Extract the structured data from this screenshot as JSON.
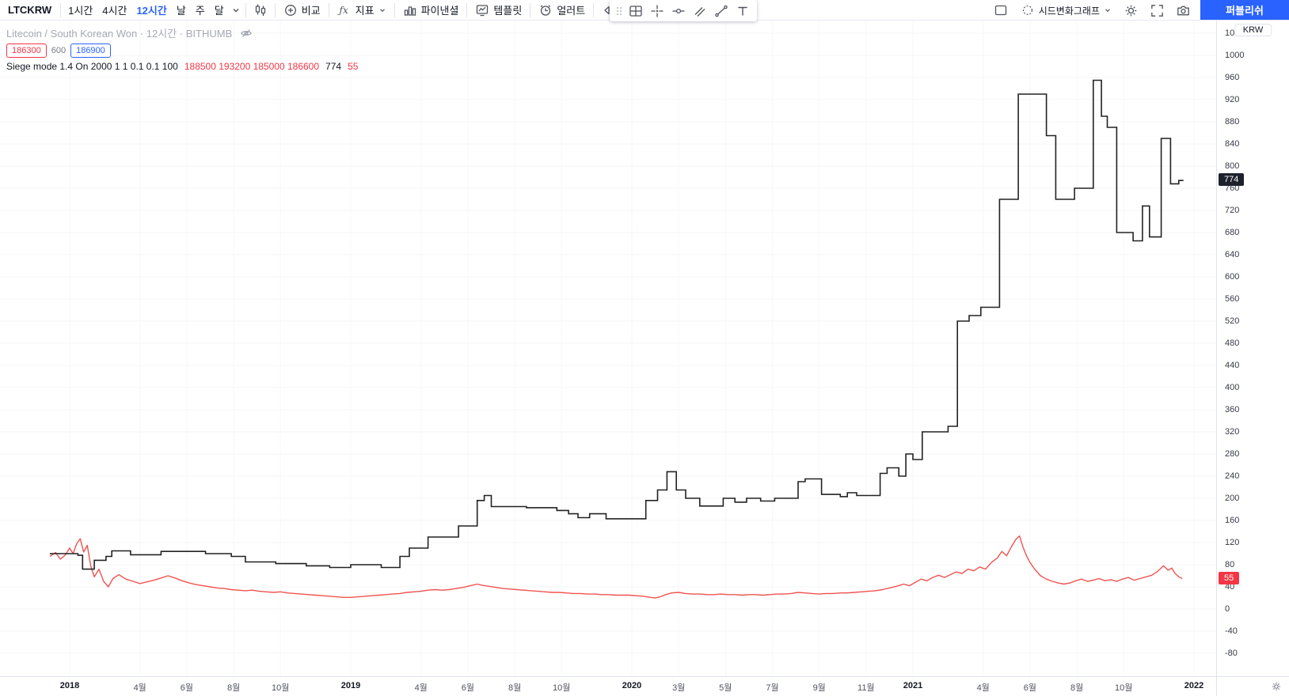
{
  "toolbar": {
    "symbol": "LTCKRW",
    "intervals": [
      {
        "label": "1시간",
        "active": false
      },
      {
        "label": "4시간",
        "active": false
      },
      {
        "label": "12시간",
        "active": true
      },
      {
        "label": "날",
        "active": false
      },
      {
        "label": "주",
        "active": false
      },
      {
        "label": "달",
        "active": false
      }
    ],
    "buttons": {
      "compare": "비교",
      "indicators": "지표",
      "financials": "파이낸셜",
      "templates": "템플릿",
      "alert": "얼러트",
      "replay": "리플레이",
      "seed_graph": "시드변화그래프",
      "publish": "퍼블리쉬"
    }
  },
  "legend": {
    "title": "Litecoin / South Korean Won · 12시간 · BITHUMB",
    "value_open": "186300",
    "value_mid": "600",
    "value_close": "186900",
    "indicator_name": "Siege mode 1.4 On 2000 1 1 0.1 0.1 100",
    "indicator_values": "188500 193200 185000 186600",
    "indicator_equity": "774",
    "indicator_last": "55"
  },
  "price_scale": {
    "currency": "KRW",
    "badges": [
      {
        "label": "774",
        "value": 774,
        "bg": "#1e222d"
      },
      {
        "label": "55",
        "value": 55,
        "bg": "#f23645"
      }
    ]
  },
  "colors": {
    "accent": "#2962ff",
    "red": "#ef5350",
    "equity_line": "#222222",
    "grid": "#f3f4f6"
  },
  "chart_data": {
    "type": "line",
    "title": "Litecoin / South Korean Won · 12시간 · BITHUMB",
    "x_unit": "months since 2018-01",
    "x_end": 47.55,
    "ylim": [
      -80,
      1040
    ],
    "y_step": 40,
    "legend_position": "top-left",
    "grid": "faint",
    "x_labels": [
      {
        "text": "2018",
        "m": 0,
        "year": true
      },
      {
        "text": "4월",
        "m": 3,
        "year": false
      },
      {
        "text": "6월",
        "m": 5,
        "year": false
      },
      {
        "text": "8월",
        "m": 7,
        "year": false
      },
      {
        "text": "10월",
        "m": 9,
        "year": false
      },
      {
        "text": "2019",
        "m": 12,
        "year": true
      },
      {
        "text": "4월",
        "m": 15,
        "year": false
      },
      {
        "text": "6월",
        "m": 17,
        "year": false
      },
      {
        "text": "8월",
        "m": 19,
        "year": false
      },
      {
        "text": "10월",
        "m": 21,
        "year": false
      },
      {
        "text": "2020",
        "m": 24,
        "year": true
      },
      {
        "text": "3월",
        "m": 26,
        "year": false
      },
      {
        "text": "5월",
        "m": 28,
        "year": false
      },
      {
        "text": "7월",
        "m": 30,
        "year": false
      },
      {
        "text": "9월",
        "m": 32,
        "year": false
      },
      {
        "text": "11월",
        "m": 34,
        "year": false
      },
      {
        "text": "2021",
        "m": 36,
        "year": true
      },
      {
        "text": "4월",
        "m": 39,
        "year": false
      },
      {
        "text": "6월",
        "m": 41,
        "year": false
      },
      {
        "text": "8월",
        "m": 43,
        "year": false
      },
      {
        "text": "10월",
        "m": 45,
        "year": false
      },
      {
        "text": "2022",
        "m": 48,
        "year": true
      }
    ],
    "series": [
      {
        "name": "strategy-equity",
        "type": "step",
        "color": "#222222",
        "last_value": 774,
        "points": [
          [
            -0.85,
            100
          ],
          [
            0.35,
            97
          ],
          [
            0.55,
            72
          ],
          [
            1.05,
            88
          ],
          [
            1.55,
            95
          ],
          [
            1.8,
            105
          ],
          [
            2.6,
            98
          ],
          [
            3.9,
            104
          ],
          [
            5.8,
            100
          ],
          [
            6.9,
            95
          ],
          [
            7.5,
            85
          ],
          [
            8.8,
            82
          ],
          [
            10.1,
            78
          ],
          [
            11.1,
            75
          ],
          [
            12.0,
            80
          ],
          [
            13.3,
            75
          ],
          [
            14.1,
            95
          ],
          [
            14.5,
            110
          ],
          [
            15.3,
            130
          ],
          [
            16.6,
            150
          ],
          [
            17.4,
            196
          ],
          [
            17.7,
            205
          ],
          [
            18.0,
            185
          ],
          [
            19.5,
            183
          ],
          [
            20.8,
            178
          ],
          [
            21.3,
            172
          ],
          [
            21.7,
            165
          ],
          [
            22.2,
            172
          ],
          [
            22.9,
            163
          ],
          [
            24.6,
            196
          ],
          [
            25.1,
            215
          ],
          [
            25.5,
            248
          ],
          [
            25.9,
            215
          ],
          [
            26.3,
            200
          ],
          [
            26.9,
            186
          ],
          [
            27.9,
            200
          ],
          [
            28.4,
            193
          ],
          [
            28.9,
            200
          ],
          [
            29.5,
            195
          ],
          [
            30.1,
            200
          ],
          [
            31.1,
            230
          ],
          [
            31.4,
            235
          ],
          [
            32.1,
            207
          ],
          [
            32.9,
            203
          ],
          [
            33.2,
            210
          ],
          [
            33.6,
            205
          ],
          [
            34.6,
            245
          ],
          [
            34.9,
            255
          ],
          [
            35.4,
            240
          ],
          [
            35.7,
            280
          ],
          [
            36.0,
            270
          ],
          [
            36.4,
            320
          ],
          [
            37.5,
            330
          ],
          [
            37.9,
            520
          ],
          [
            38.4,
            530
          ],
          [
            38.9,
            545
          ],
          [
            39.7,
            740
          ],
          [
            40.5,
            930
          ],
          [
            41.7,
            855
          ],
          [
            42.1,
            740
          ],
          [
            42.9,
            760
          ],
          [
            43.7,
            955
          ],
          [
            44.05,
            890
          ],
          [
            44.3,
            870
          ],
          [
            44.7,
            680
          ],
          [
            45.4,
            665
          ],
          [
            45.8,
            728
          ],
          [
            46.1,
            672
          ],
          [
            46.6,
            850
          ],
          [
            47.0,
            768
          ],
          [
            47.35,
            774
          ]
        ]
      },
      {
        "name": "price-line",
        "type": "line",
        "color": "#ef5350",
        "last_value": 55,
        "points": [
          [
            -0.85,
            95
          ],
          [
            -0.6,
            102
          ],
          [
            -0.4,
            90
          ],
          [
            -0.2,
            97
          ],
          [
            0.0,
            110
          ],
          [
            0.15,
            100
          ],
          [
            0.3,
            118
          ],
          [
            0.45,
            127
          ],
          [
            0.6,
            103
          ],
          [
            0.75,
            115
          ],
          [
            0.9,
            78
          ],
          [
            1.05,
            58
          ],
          [
            1.25,
            72
          ],
          [
            1.45,
            50
          ],
          [
            1.65,
            40
          ],
          [
            1.85,
            55
          ],
          [
            2.1,
            62
          ],
          [
            2.4,
            54
          ],
          [
            2.7,
            50
          ],
          [
            3.0,
            46
          ],
          [
            3.3,
            49
          ],
          [
            3.6,
            52
          ],
          [
            3.9,
            56
          ],
          [
            4.2,
            60
          ],
          [
            4.5,
            56
          ],
          [
            4.8,
            51
          ],
          [
            5.1,
            47
          ],
          [
            5.4,
            44
          ],
          [
            5.7,
            42
          ],
          [
            6.0,
            40
          ],
          [
            6.3,
            38
          ],
          [
            6.6,
            37
          ],
          [
            6.9,
            35
          ],
          [
            7.2,
            34
          ],
          [
            7.5,
            33
          ],
          [
            7.8,
            34
          ],
          [
            8.1,
            32
          ],
          [
            8.4,
            31
          ],
          [
            8.7,
            30
          ],
          [
            9.0,
            31
          ],
          [
            9.3,
            29
          ],
          [
            9.6,
            28
          ],
          [
            9.9,
            27
          ],
          [
            10.2,
            26
          ],
          [
            10.5,
            25
          ],
          [
            10.8,
            24
          ],
          [
            11.1,
            23
          ],
          [
            11.4,
            22
          ],
          [
            11.7,
            21
          ],
          [
            12.0,
            21
          ],
          [
            12.3,
            22
          ],
          [
            12.6,
            23
          ],
          [
            12.9,
            24
          ],
          [
            13.2,
            25
          ],
          [
            13.5,
            26
          ],
          [
            13.8,
            27
          ],
          [
            14.1,
            28
          ],
          [
            14.4,
            30
          ],
          [
            14.7,
            31
          ],
          [
            15.0,
            32
          ],
          [
            15.3,
            34
          ],
          [
            15.6,
            35
          ],
          [
            15.9,
            34
          ],
          [
            16.2,
            35
          ],
          [
            16.5,
            37
          ],
          [
            16.8,
            39
          ],
          [
            17.1,
            42
          ],
          [
            17.4,
            45
          ],
          [
            17.6,
            43
          ],
          [
            17.9,
            41
          ],
          [
            18.2,
            39
          ],
          [
            18.5,
            37
          ],
          [
            18.8,
            36
          ],
          [
            19.1,
            35
          ],
          [
            19.4,
            34
          ],
          [
            19.7,
            33
          ],
          [
            20.0,
            32
          ],
          [
            20.3,
            31
          ],
          [
            20.6,
            30
          ],
          [
            20.9,
            30
          ],
          [
            21.2,
            29
          ],
          [
            21.5,
            28
          ],
          [
            21.8,
            28
          ],
          [
            22.1,
            27
          ],
          [
            22.4,
            27
          ],
          [
            22.7,
            26
          ],
          [
            23.0,
            26
          ],
          [
            23.3,
            25
          ],
          [
            23.6,
            25
          ],
          [
            23.9,
            25
          ],
          [
            24.2,
            24
          ],
          [
            24.5,
            23
          ],
          [
            24.8,
            21
          ],
          [
            25.0,
            20
          ],
          [
            25.2,
            22
          ],
          [
            25.45,
            26
          ],
          [
            25.7,
            29
          ],
          [
            26.0,
            30
          ],
          [
            26.3,
            28
          ],
          [
            26.6,
            27
          ],
          [
            26.9,
            27
          ],
          [
            27.2,
            26
          ],
          [
            27.5,
            26
          ],
          [
            27.8,
            27
          ],
          [
            28.1,
            26
          ],
          [
            28.4,
            26
          ],
          [
            28.7,
            25
          ],
          [
            29.0,
            26
          ],
          [
            29.3,
            26
          ],
          [
            29.6,
            25
          ],
          [
            29.9,
            26
          ],
          [
            30.2,
            27
          ],
          [
            30.5,
            27
          ],
          [
            30.8,
            28
          ],
          [
            31.1,
            30
          ],
          [
            31.4,
            29
          ],
          [
            31.7,
            28
          ],
          [
            32.0,
            27
          ],
          [
            32.3,
            28
          ],
          [
            32.6,
            28
          ],
          [
            32.9,
            29
          ],
          [
            33.2,
            29
          ],
          [
            33.5,
            30
          ],
          [
            33.8,
            31
          ],
          [
            34.1,
            32
          ],
          [
            34.4,
            33
          ],
          [
            34.7,
            35
          ],
          [
            35.0,
            38
          ],
          [
            35.3,
            41
          ],
          [
            35.6,
            45
          ],
          [
            35.85,
            42
          ],
          [
            36.1,
            48
          ],
          [
            36.35,
            54
          ],
          [
            36.6,
            51
          ],
          [
            36.85,
            57
          ],
          [
            37.1,
            61
          ],
          [
            37.35,
            57
          ],
          [
            37.6,
            62
          ],
          [
            37.85,
            67
          ],
          [
            38.1,
            64
          ],
          [
            38.35,
            72
          ],
          [
            38.6,
            69
          ],
          [
            38.85,
            76
          ],
          [
            39.1,
            72
          ],
          [
            39.35,
            84
          ],
          [
            39.6,
            92
          ],
          [
            39.8,
            104
          ],
          [
            40.0,
            96
          ],
          [
            40.2,
            112
          ],
          [
            40.4,
            126
          ],
          [
            40.55,
            132
          ],
          [
            40.7,
            112
          ],
          [
            40.85,
            96
          ],
          [
            41.0,
            84
          ],
          [
            41.2,
            72
          ],
          [
            41.45,
            60
          ],
          [
            41.7,
            54
          ],
          [
            41.95,
            50
          ],
          [
            42.2,
            47
          ],
          [
            42.45,
            45
          ],
          [
            42.7,
            47
          ],
          [
            42.95,
            51
          ],
          [
            43.2,
            54
          ],
          [
            43.45,
            50
          ],
          [
            43.7,
            52
          ],
          [
            43.95,
            55
          ],
          [
            44.2,
            51
          ],
          [
            44.45,
            53
          ],
          [
            44.7,
            50
          ],
          [
            44.95,
            54
          ],
          [
            45.2,
            57
          ],
          [
            45.45,
            52
          ],
          [
            45.7,
            55
          ],
          [
            45.95,
            58
          ],
          [
            46.2,
            61
          ],
          [
            46.45,
            68
          ],
          [
            46.7,
            78
          ],
          [
            46.9,
            70
          ],
          [
            47.05,
            74
          ],
          [
            47.2,
            64
          ],
          [
            47.35,
            58
          ],
          [
            47.5,
            55
          ]
        ]
      }
    ]
  }
}
